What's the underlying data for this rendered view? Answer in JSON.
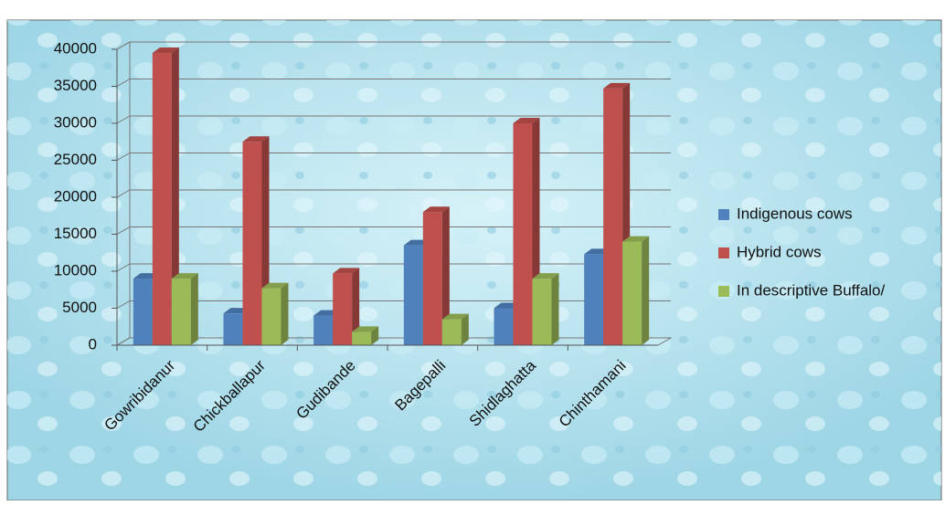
{
  "chart_data": {
    "type": "bar3d",
    "categories": [
      "Gowribidanur",
      "Chickballapur",
      "Gudibande",
      "Bagepalli",
      "Shidlaghatta",
      "Chinthamani"
    ],
    "series": [
      {
        "name": "Indigenous cows",
        "color": "#4f81bd",
        "values": [
          9000,
          4300,
          4000,
          13500,
          5000,
          12300
        ]
      },
      {
        "name": "Hybrid cows",
        "color": "#c0504d",
        "values": [
          39500,
          27500,
          9700,
          18000,
          30000,
          34700
        ]
      },
      {
        "name": "In descriptive Buffalo/",
        "color": "#9bbb59",
        "values": [
          9000,
          7700,
          1800,
          3500,
          9000,
          14000
        ]
      }
    ],
    "ylim": [
      0,
      40000
    ],
    "yticks": [
      0,
      5000,
      10000,
      15000,
      20000,
      25000,
      30000,
      35000,
      40000
    ],
    "grid": true,
    "legend": "right"
  }
}
